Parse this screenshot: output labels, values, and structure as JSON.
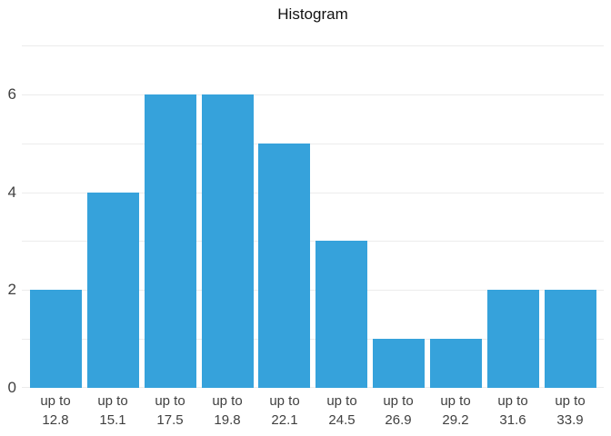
{
  "colors": {
    "bar": "#36a2db",
    "grid": "#ececec",
    "text": "#404040",
    "title": "#111111",
    "background": "#ffffff"
  },
  "chart_data": {
    "type": "bar",
    "title": "Histogram",
    "categories": [
      "up to 12.8",
      "up to 15.1",
      "up to 17.5",
      "up to 19.8",
      "up to 22.1",
      "up to 24.5",
      "up to 26.9",
      "up to 29.2",
      "up to 31.6",
      "up to 33.9"
    ],
    "values": [
      2,
      4,
      6,
      6,
      5,
      3,
      1,
      1,
      2,
      2
    ],
    "xlabel": "",
    "ylabel": "",
    "ylim": [
      0,
      7
    ],
    "yticks": [
      0,
      2,
      4,
      6
    ],
    "gridline_values": [
      0,
      1,
      2,
      3,
      4,
      5,
      6,
      7
    ],
    "grid": true,
    "legend": false
  }
}
